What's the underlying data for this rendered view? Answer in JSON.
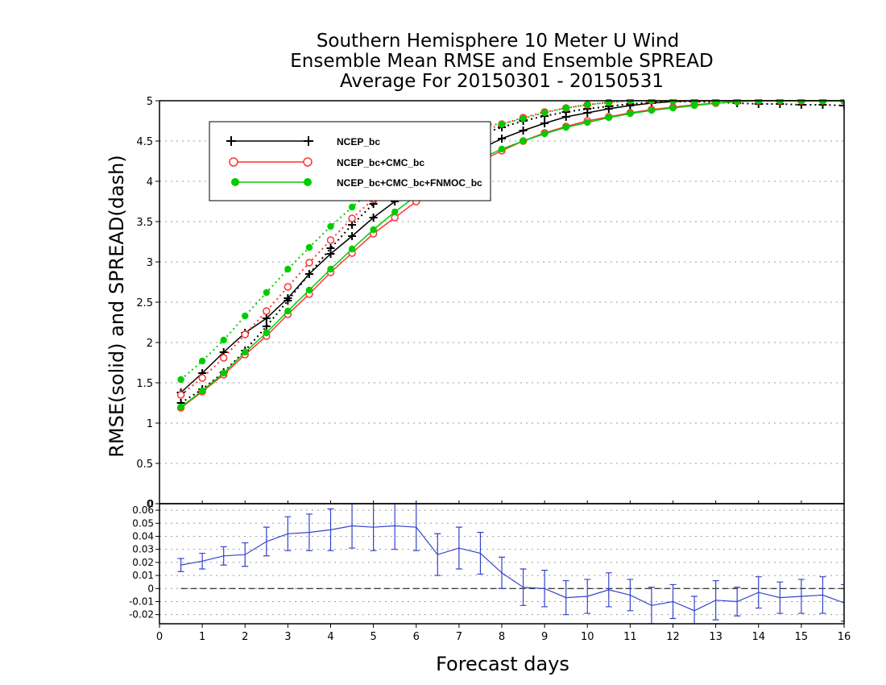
{
  "chart_data": [
    {
      "type": "line",
      "title": [
        "Southern Hemisphere 10 Meter U Wind",
        "Ensemble Mean RMSE and Ensemble SPREAD",
        "Average For 20150301 - 20150531"
      ],
      "ylabel": "RMSE(solid) and SPREAD(dash)",
      "xlim": [
        0,
        16
      ],
      "ylim": [
        0,
        5
      ],
      "yticks": [
        "0",
        "0.5",
        "1",
        "1.5",
        "2",
        "2.5",
        "3",
        "3.5",
        "4",
        "4.5",
        "5"
      ],
      "grid": true,
      "legend_position": "top-left",
      "x": [
        0.5,
        1,
        1.5,
        2,
        2.5,
        3,
        3.5,
        4,
        4.5,
        5,
        5.5,
        6,
        6.5,
        7,
        7.5,
        8,
        8.5,
        9,
        9.5,
        10,
        10.5,
        11,
        11.5,
        12,
        12.5,
        13,
        13.5,
        14,
        14.5,
        15,
        15.5,
        16
      ],
      "series": [
        {
          "name": "NCEP_bc",
          "color": "#000000",
          "marker": "plus",
          "style": "solid",
          "values": [
            1.38,
            1.62,
            1.88,
            2.12,
            2.3,
            2.55,
            2.85,
            3.1,
            3.32,
            3.55,
            3.75,
            3.95,
            4.12,
            4.28,
            4.4,
            4.53,
            4.63,
            4.72,
            4.8,
            4.85,
            4.9,
            4.94,
            4.97,
            4.99,
            5.0,
            5.0,
            5.0,
            5.0,
            5.0,
            5.0,
            5.0,
            5.0
          ]
        },
        {
          "name": "NCEP_bc",
          "color": "#000000",
          "marker": "plus",
          "style": "dash",
          "values": [
            1.25,
            1.42,
            1.63,
            1.9,
            2.2,
            2.52,
            2.85,
            3.17,
            3.46,
            3.72,
            3.95,
            4.15,
            4.32,
            4.46,
            4.58,
            4.67,
            4.75,
            4.81,
            4.86,
            4.9,
            4.93,
            4.96,
            4.98,
            4.99,
            4.99,
            4.98,
            4.97,
            4.96,
            4.96,
            4.95,
            4.95,
            4.94
          ]
        },
        {
          "name": "NCEP_bc+CMC_bc",
          "color": "#ff3333",
          "marker": "open-circle",
          "style": "solid",
          "values": [
            1.19,
            1.39,
            1.6,
            1.85,
            2.08,
            2.35,
            2.6,
            2.87,
            3.11,
            3.35,
            3.55,
            3.75,
            3.93,
            4.1,
            4.25,
            4.38,
            4.5,
            4.6,
            4.68,
            4.75,
            4.8,
            4.85,
            4.89,
            4.92,
            4.95,
            4.97,
            4.99,
            5.0,
            5.0,
            5.0,
            5.0,
            5.0
          ]
        },
        {
          "name": "NCEP_bc+CMC_bc",
          "color": "#ff3333",
          "marker": "open-circle",
          "style": "dash",
          "values": [
            1.35,
            1.56,
            1.81,
            2.1,
            2.39,
            2.69,
            2.99,
            3.27,
            3.54,
            3.78,
            3.99,
            4.18,
            4.35,
            4.49,
            4.61,
            4.71,
            4.79,
            4.86,
            4.91,
            4.95,
            4.98,
            5.0,
            5.0,
            5.0,
            5.0,
            5.0,
            5.0,
            5.0,
            5.0,
            5.0,
            5.0,
            5.0
          ]
        },
        {
          "name": "NCEP_bc+CMC_bc+FNMOC_bc",
          "color": "#00cc00",
          "marker": "filled-circle",
          "style": "solid",
          "values": [
            1.2,
            1.4,
            1.62,
            1.88,
            2.12,
            2.39,
            2.65,
            2.91,
            3.16,
            3.4,
            3.62,
            3.82,
            3.99,
            4.14,
            4.28,
            4.4,
            4.5,
            4.59,
            4.67,
            4.73,
            4.79,
            4.84,
            4.88,
            4.91,
            4.94,
            4.97,
            4.99,
            5.0,
            5.0,
            5.0,
            5.0,
            5.0
          ]
        },
        {
          "name": "NCEP_bc+CMC_bc+FNMOC_bc",
          "color": "#00cc00",
          "marker": "filled-circle",
          "style": "dash",
          "values": [
            1.54,
            1.77,
            2.03,
            2.33,
            2.62,
            2.91,
            3.18,
            3.44,
            3.68,
            3.9,
            4.1,
            4.28,
            4.44,
            4.58,
            4.7,
            4.71,
            4.78,
            4.85,
            4.91,
            4.95,
            4.98,
            5.0,
            5.0,
            5.0,
            5.0,
            5.0,
            5.0,
            5.0,
            5.0,
            5.0,
            5.0,
            5.0
          ]
        }
      ]
    },
    {
      "type": "line",
      "xlabel": "Forecast days",
      "xlim": [
        0,
        16
      ],
      "ylim": [
        -0.027,
        0.065
      ],
      "xticks": [
        "0",
        "1",
        "2",
        "3",
        "4",
        "5",
        "6",
        "7",
        "8",
        "9",
        "10",
        "11",
        "12",
        "13",
        "14",
        "15",
        "16"
      ],
      "yticks": [
        "-0.02",
        "-0.01",
        "0",
        "0.01",
        "0.02",
        "0.03",
        "0.04",
        "0.05",
        "0.06"
      ],
      "zero_tick_label": "0",
      "reference_line": 0,
      "x": [
        0.5,
        1,
        1.5,
        2,
        2.5,
        3,
        3.5,
        4,
        4.5,
        5,
        5.5,
        6,
        6.5,
        7,
        7.5,
        8,
        8.5,
        9,
        9.5,
        10,
        10.5,
        11,
        11.5,
        12,
        12.5,
        13,
        13.5,
        14,
        14.5,
        15,
        15.5,
        16
      ],
      "series": [
        {
          "color": "#3344cc",
          "values": [
            0.018,
            0.021,
            0.025,
            0.026,
            0.036,
            0.042,
            0.043,
            0.045,
            0.048,
            0.047,
            0.048,
            0.047,
            0.026,
            0.031,
            0.027,
            0.012,
            0.001,
            0.0,
            -0.007,
            -0.006,
            -0.001,
            -0.005,
            -0.013,
            -0.01,
            -0.017,
            -0.009,
            -0.01,
            -0.003,
            -0.007,
            -0.006,
            -0.005,
            -0.011
          ],
          "error": [
            0.005,
            0.006,
            0.007,
            0.009,
            0.011,
            0.013,
            0.014,
            0.016,
            0.017,
            0.018,
            0.018,
            0.018,
            0.016,
            0.016,
            0.016,
            0.012,
            0.014,
            0.014,
            0.013,
            0.013,
            0.013,
            0.012,
            0.014,
            0.013,
            0.011,
            0.015,
            0.011,
            0.012,
            0.012,
            0.013,
            0.014,
            0.014
          ]
        }
      ]
    }
  ],
  "colors": {
    "axis": "#000000",
    "grid": "#999999",
    "diff_series": "#3344cc"
  }
}
